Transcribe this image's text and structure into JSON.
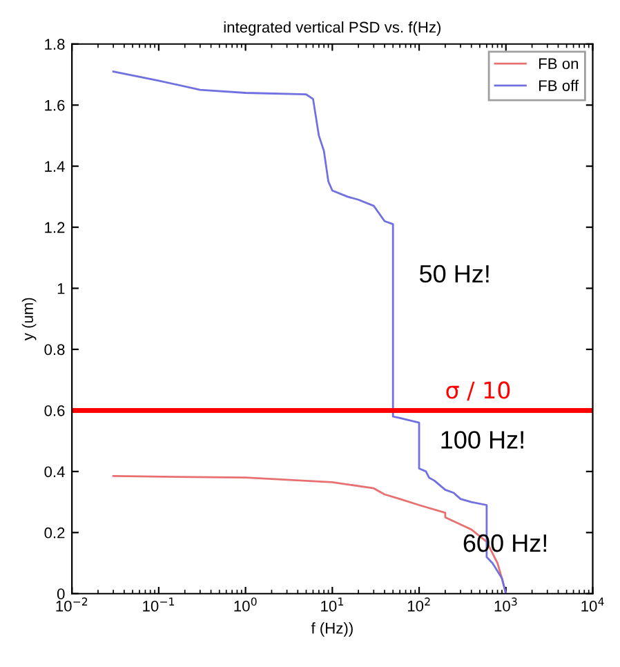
{
  "chart_data": {
    "type": "line",
    "title": "integrated vertical PSD vs. f(Hz)",
    "xlabel": "f (Hz))",
    "ylabel": "y (um)",
    "log": "x",
    "legend": "top right",
    "grid": false,
    "xlim": [
      0.01,
      10000
    ],
    "xticks": [
      {
        "value": 0.01,
        "label": "10$^{−2}$"
      },
      {
        "value": 0.1,
        "label": "10$^{−1}$"
      },
      {
        "value": 1,
        "label": "10$^{0}$"
      },
      {
        "value": 10,
        "label": "10$^{1}$"
      },
      {
        "value": 100,
        "label": "10$^{2}$"
      },
      {
        "value": 1000,
        "label": "10$^{3}$"
      },
      {
        "value": 10000,
        "label": "10$^{4}$"
      }
    ],
    "ylim": [
      0,
      1.8
    ],
    "yticks": [
      0,
      0.2,
      0.4,
      0.6,
      0.8,
      1,
      1.2,
      1.4,
      1.6,
      1.8
    ],
    "series": [
      {
        "name": "FB on",
        "color": "#e87070",
        "x": [
          0.03,
          1,
          10,
          30,
          40,
          60,
          100,
          200,
          200,
          400,
          600,
          800,
          900,
          1000
        ],
        "values": [
          0.385,
          0.38,
          0.365,
          0.345,
          0.325,
          0.31,
          0.29,
          0.265,
          0.25,
          0.21,
          0.17,
          0.1,
          0.05,
          0
        ]
      },
      {
        "name": "FB off",
        "color": "#7070e0",
        "x": [
          0.03,
          0.1,
          0.3,
          1,
          5,
          6,
          7,
          8,
          9,
          10,
          15,
          20,
          30,
          40,
          50,
          50,
          60,
          100,
          100,
          120,
          130,
          150,
          200,
          250,
          300,
          400,
          600,
          600,
          700,
          900,
          1000
        ],
        "values": [
          1.71,
          1.68,
          1.65,
          1.64,
          1.635,
          1.62,
          1.5,
          1.45,
          1.35,
          1.32,
          1.3,
          1.29,
          1.27,
          1.22,
          1.21,
          0.58,
          0.575,
          0.56,
          0.41,
          0.4,
          0.38,
          0.37,
          0.34,
          0.33,
          0.31,
          0.3,
          0.29,
          0.12,
          0.1,
          0.05,
          0
        ]
      }
    ],
    "ref_lines": [
      {
        "axis": "y",
        "value": 0.6,
        "label": "σ / 10",
        "color": "#ff0000",
        "line_style": "solid"
      }
    ],
    "annotations": [
      "50 Hz!",
      "100 Hz!",
      "600 Hz!"
    ]
  }
}
